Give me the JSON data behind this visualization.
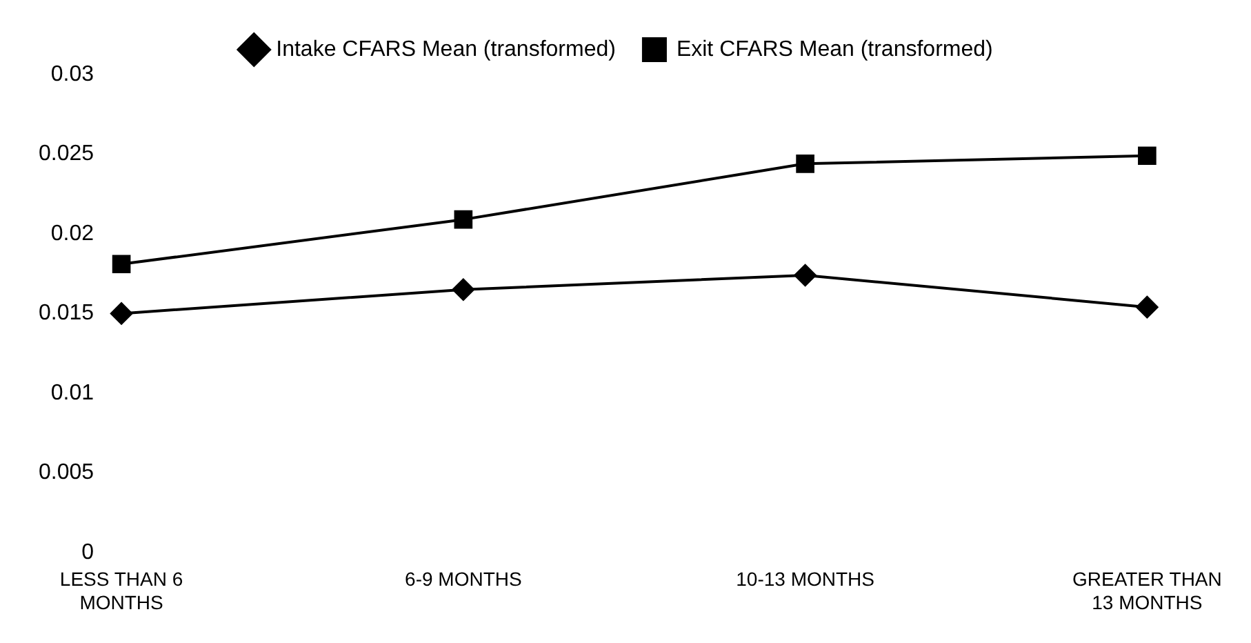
{
  "chart_data": {
    "type": "line",
    "categories": [
      "LESS THAN 6 MONTHS",
      "6-9 MONTHS",
      "10-13 MONTHS",
      "GREATER THAN 13 MONTHS"
    ],
    "series": [
      {
        "name": "Intake CFARS Mean (transformed)",
        "color": "#000000",
        "marker": "diamond",
        "values": [
          0.015,
          0.0165,
          0.0174,
          0.0154
        ]
      },
      {
        "name": "Exit CFARS Mean (transformed)",
        "color": "#000000",
        "marker": "square",
        "values": [
          0.0181,
          0.0209,
          0.0244,
          0.0249
        ]
      }
    ],
    "ylim": [
      0,
      0.03
    ],
    "yticks": [
      0,
      0.005,
      0.01,
      0.015,
      0.02,
      0.025,
      0.03
    ],
    "grid": false,
    "legend": "top"
  }
}
